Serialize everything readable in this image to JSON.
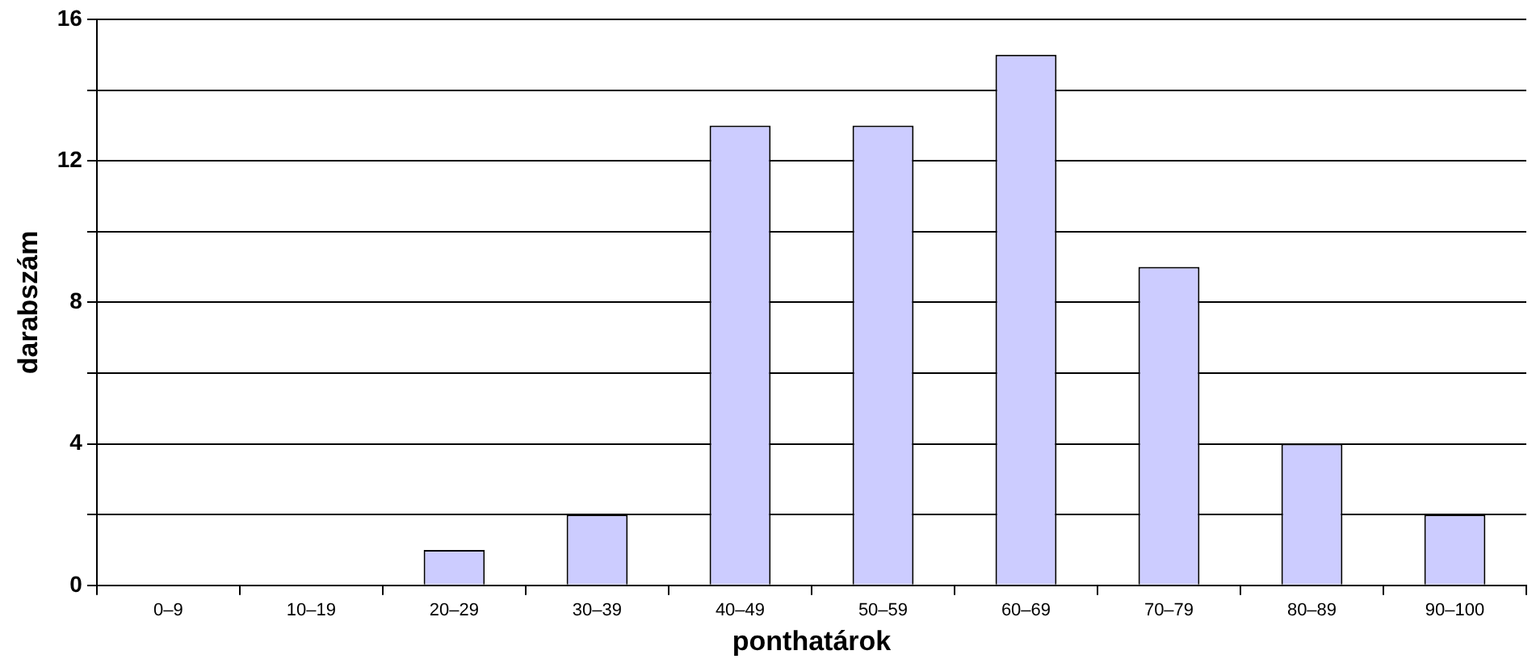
{
  "chart_data": {
    "type": "bar",
    "xlabel": "ponthatárok",
    "ylabel": "darabszám",
    "categories": [
      "0–9",
      "10–19",
      "20–29",
      "30–39",
      "40–49",
      "50–59",
      "60–69",
      "70–79",
      "80–89",
      "90–100"
    ],
    "values": [
      0,
      0,
      1,
      2,
      13,
      13,
      15,
      9,
      4,
      2
    ],
    "color": "#ccccff",
    "ylim": [
      0,
      16
    ],
    "yticks": [
      0,
      {
        "value": 2,
        "label": null
      },
      4,
      {
        "value": 6,
        "label": null
      },
      8,
      {
        "value": 10,
        "label": null
      },
      12,
      {
        "value": 14,
        "label": null
      },
      16
    ],
    "grid": "y",
    "legend": false
  }
}
